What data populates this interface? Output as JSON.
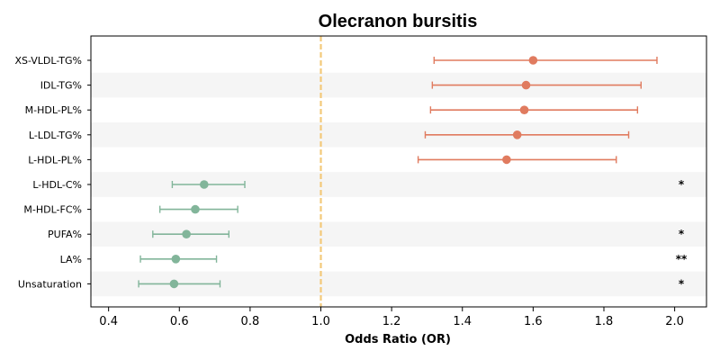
{
  "chart_data": {
    "type": "forest",
    "title": "Olecranon bursitis",
    "xlabel": "Odds Ratio (OR)",
    "ylabel": "",
    "xlim": [
      0.35,
      2.09
    ],
    "xticks": [
      0.4,
      0.6,
      0.8,
      1.0,
      1.2,
      1.4,
      1.6,
      1.8,
      2.0
    ],
    "xtick_labels": [
      "0.4",
      "0.6",
      "0.8",
      "1.0",
      "1.2",
      "1.4",
      "1.6",
      "1.8",
      "2.0"
    ],
    "reference_line": 1.0,
    "colors": {
      "risk": "#e07b5f",
      "protective": "#82b59a",
      "reference_line": "#f3c97a",
      "band": "#f5f5f5"
    },
    "rows": [
      {
        "label": "XS-VLDL-TG%",
        "or": 1.6,
        "ci_low": 1.32,
        "ci_high": 1.95,
        "group": "risk",
        "sig": ""
      },
      {
        "label": "IDL-TG%",
        "or": 1.58,
        "ci_low": 1.315,
        "ci_high": 1.905,
        "group": "risk",
        "sig": ""
      },
      {
        "label": "M-HDL-PL%",
        "or": 1.575,
        "ci_low": 1.31,
        "ci_high": 1.895,
        "group": "risk",
        "sig": ""
      },
      {
        "label": "L-LDL-TG%",
        "or": 1.555,
        "ci_low": 1.295,
        "ci_high": 1.87,
        "group": "risk",
        "sig": ""
      },
      {
        "label": "L-HDL-PL%",
        "or": 1.525,
        "ci_low": 1.275,
        "ci_high": 1.835,
        "group": "risk",
        "sig": ""
      },
      {
        "label": "L-HDL-C%",
        "or": 0.67,
        "ci_low": 0.58,
        "ci_high": 0.785,
        "group": "protective",
        "sig": "*"
      },
      {
        "label": "M-HDL-FC%",
        "or": 0.645,
        "ci_low": 0.545,
        "ci_high": 0.765,
        "group": "protective",
        "sig": ""
      },
      {
        "label": "PUFA%",
        "or": 0.62,
        "ci_low": 0.525,
        "ci_high": 0.74,
        "group": "protective",
        "sig": "*"
      },
      {
        "label": "LA%",
        "or": 0.59,
        "ci_low": 0.49,
        "ci_high": 0.705,
        "group": "protective",
        "sig": "**"
      },
      {
        "label": "Unsaturation",
        "or": 0.585,
        "ci_low": 0.485,
        "ci_high": 0.715,
        "group": "protective",
        "sig": "*"
      }
    ]
  }
}
